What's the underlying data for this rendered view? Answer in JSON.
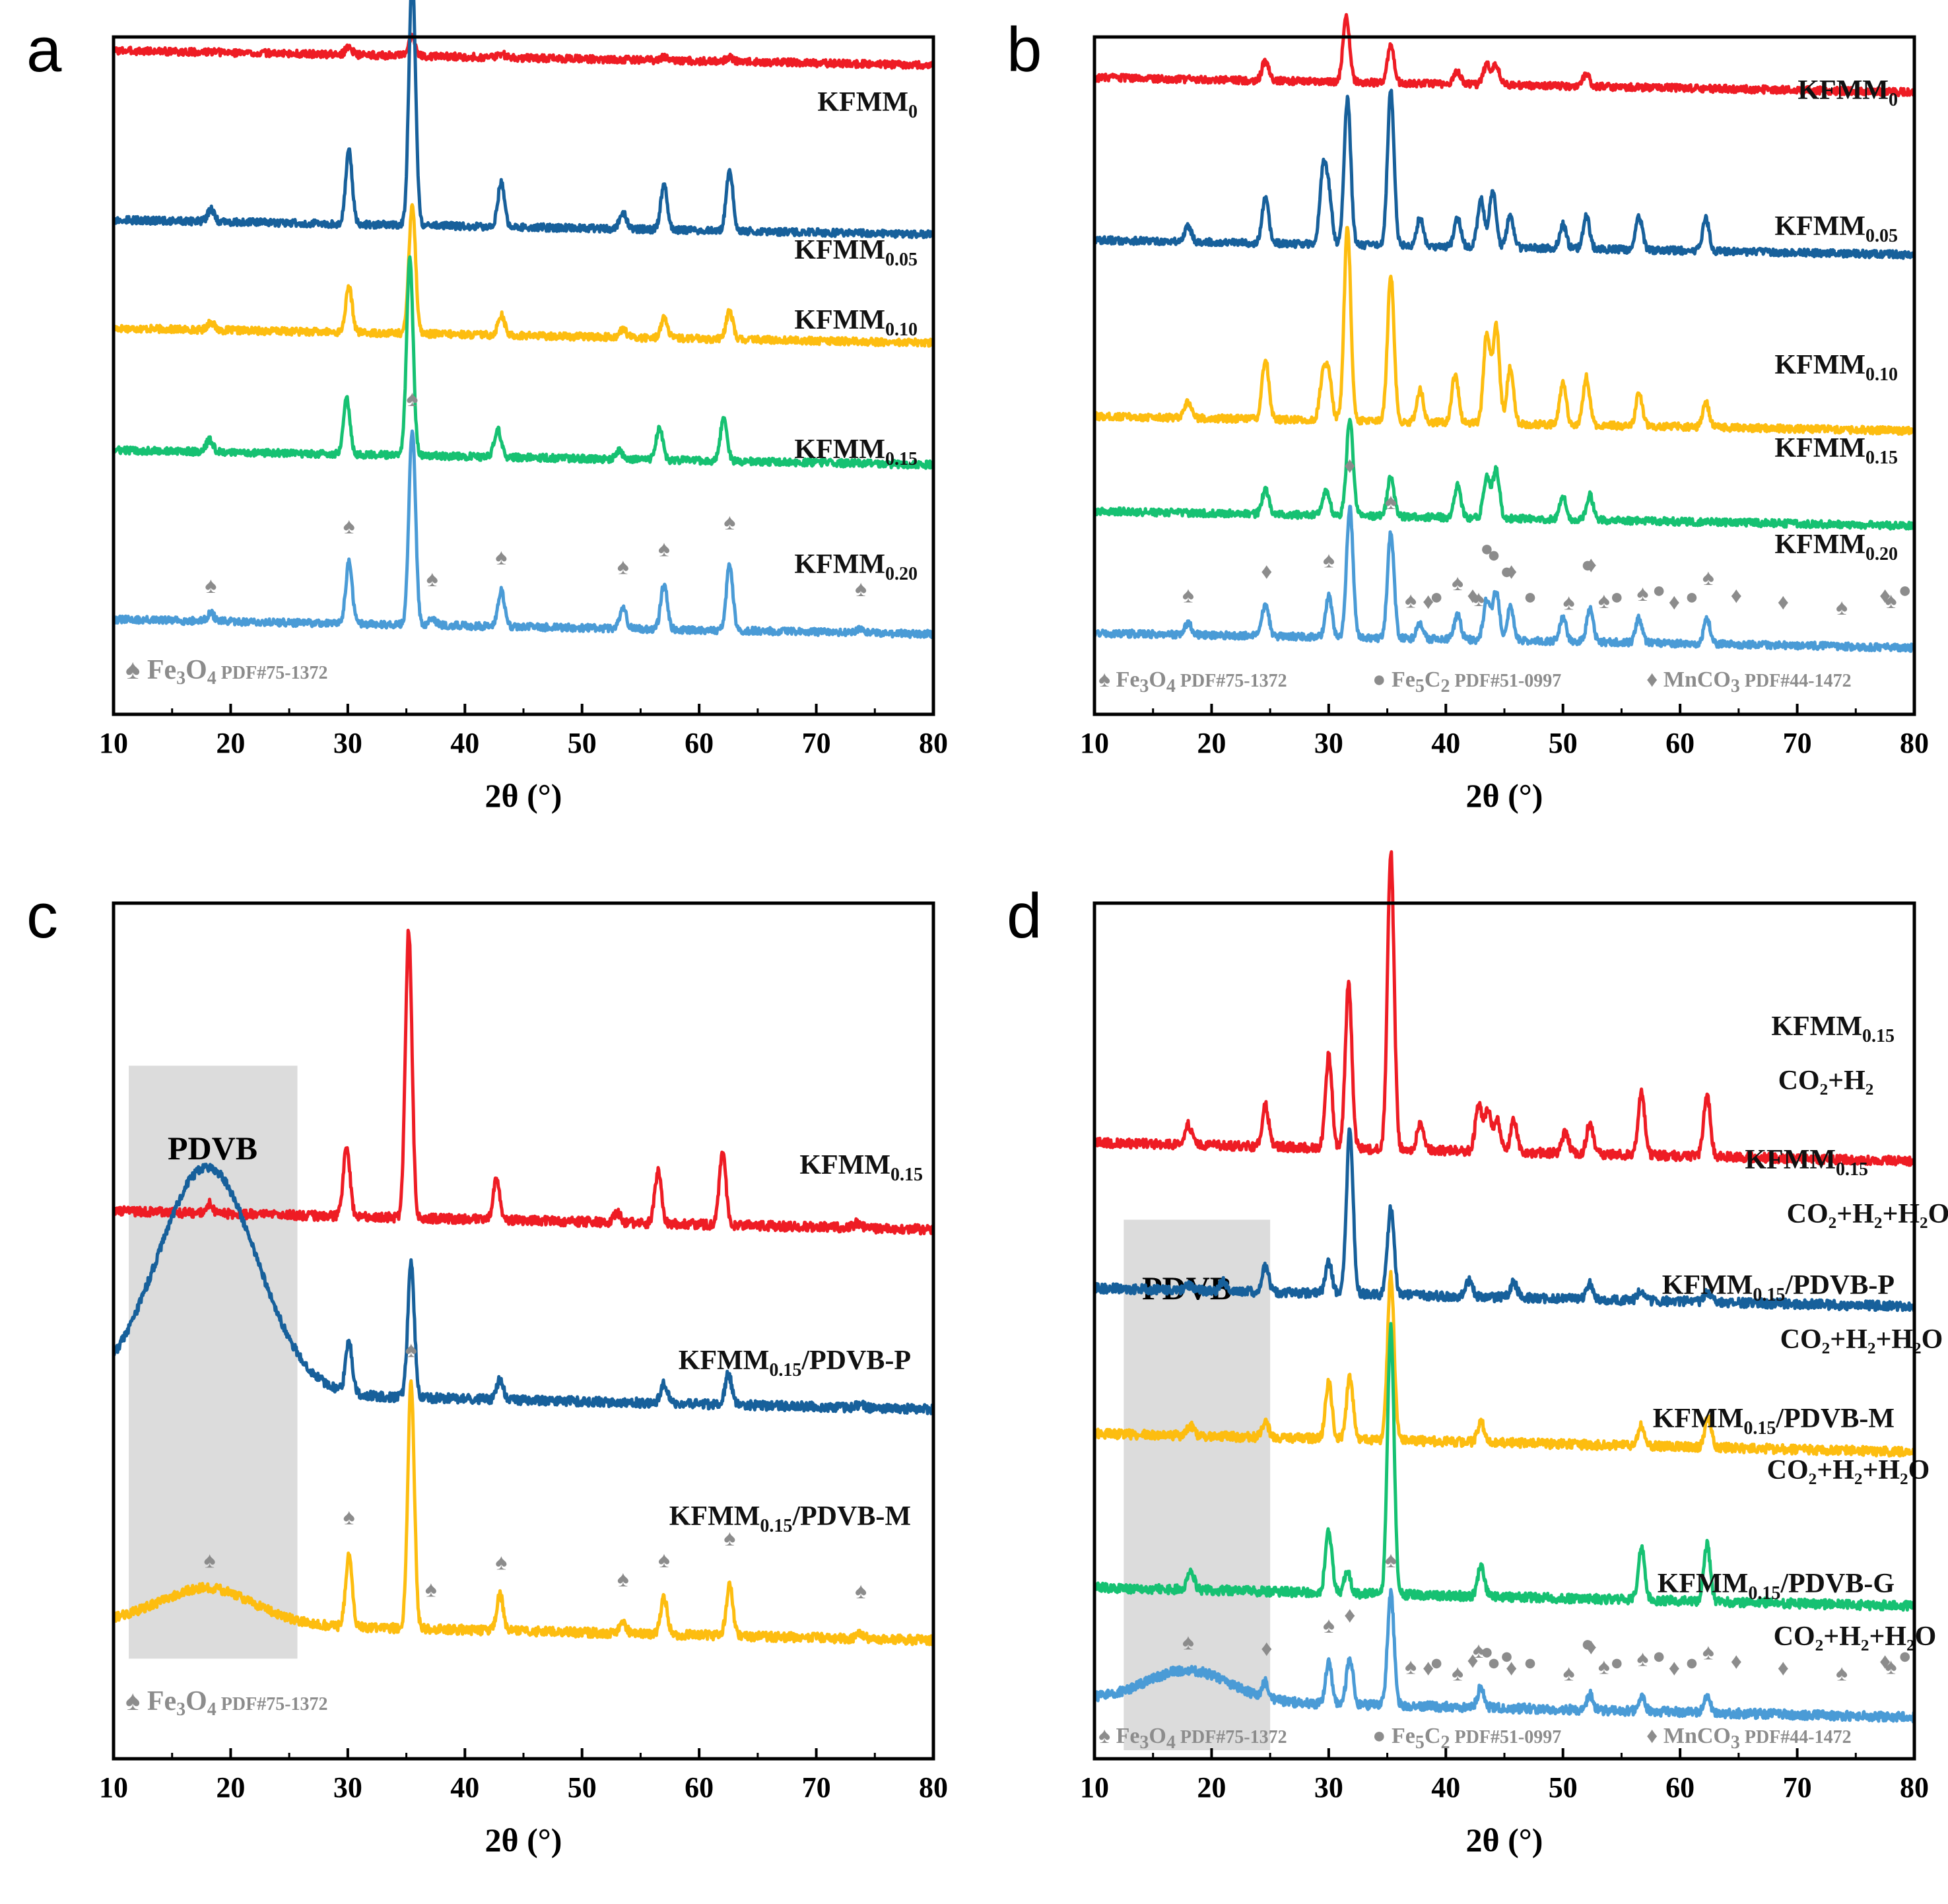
{
  "colors": {
    "red": "#ee1c24",
    "darkblue": "#17609b",
    "yellow": "#fdbd10",
    "green": "#16c172",
    "lightblue": "#4a9bd6",
    "marker": "#8c8c8c",
    "shade": "#dcdcdc"
  },
  "chart_data": [
    {
      "panel": "a",
      "type": "line",
      "xlabel": "2θ (°)",
      "xlim": [
        10,
        80
      ],
      "xticks": [
        10,
        20,
        30,
        40,
        50,
        60,
        70,
        80
      ],
      "grid": false,
      "series": [
        {
          "name": "KFMM",
          "sub": "0",
          "color": "red",
          "offset": 0.02,
          "peaks": [
            [
              30.1,
              0.1
            ],
            [
              35.5,
              0.25
            ],
            [
              43.1,
              0.05
            ],
            [
              57,
              0.05
            ],
            [
              62.6,
              0.05
            ]
          ]
        },
        {
          "name": "KFMM",
          "sub": "0.05",
          "color": "darkblue",
          "offset": 0.27,
          "peaks": [
            [
              18.3,
              0.15
            ],
            [
              30.1,
              0.9
            ],
            [
              35.5,
              3.1
            ],
            [
              43.1,
              0.55
            ],
            [
              53.5,
              0.2
            ],
            [
              57,
              0.55
            ],
            [
              62.6,
              0.75
            ]
          ]
        },
        {
          "name": "KFMM",
          "sub": "0.10",
          "color": "yellow",
          "offset": 0.43,
          "peaks": [
            [
              18.3,
              0.1
            ],
            [
              30.1,
              0.55
            ],
            [
              35.5,
              1.6
            ],
            [
              43.1,
              0.25
            ],
            [
              53.5,
              0.1
            ],
            [
              57,
              0.25
            ],
            [
              62.6,
              0.35
            ]
          ]
        },
        {
          "name": "KFMM",
          "sub": "0.15",
          "color": "green",
          "offset": 0.61,
          "peaks": [
            [
              18.2,
              0.15
            ],
            [
              29.9,
              0.7
            ],
            [
              35.3,
              2.4
            ],
            [
              42.8,
              0.35
            ],
            [
              53.2,
              0.1
            ],
            [
              56.6,
              0.4
            ],
            [
              62.1,
              0.55
            ]
          ]
        },
        {
          "name": "KFMM",
          "sub": "0.20",
          "color": "lightblue",
          "offset": 0.86,
          "peaks": [
            [
              18.3,
              0.1
            ],
            [
              30.1,
              0.75
            ],
            [
              35.5,
              2.4
            ],
            [
              37.2,
              0.1
            ],
            [
              43.1,
              0.45
            ],
            [
              53.5,
              0.25
            ],
            [
              57,
              0.55
            ],
            [
              62.6,
              0.8
            ],
            [
              73.8,
              0.06
            ]
          ]
        }
      ],
      "markers": [
        {
          "symbol": "spade",
          "positions": [
            18.3,
            30.1,
            35.5,
            37.2,
            43.1,
            53.5,
            57,
            62.6,
            73.8
          ]
        }
      ],
      "legend": [
        {
          "symbol": "♠",
          "phase": "Fe",
          "phase_sub1": "3",
          "phase_mid": "O",
          "phase_sub2": "4",
          "pdf": "PDF#75-1372"
        }
      ]
    },
    {
      "panel": "b",
      "type": "line",
      "xlabel": "2θ (°)",
      "xlim": [
        10,
        80
      ],
      "xticks": [
        10,
        20,
        30,
        40,
        50,
        60,
        70,
        80
      ],
      "grid": false,
      "series": [
        {
          "name": "KFMM",
          "sub": "0",
          "color": "red",
          "offset": 0.06,
          "peaks": [
            [
              24.6,
              0.25
            ],
            [
              31.5,
              0.8
            ],
            [
              35.3,
              0.45
            ],
            [
              41,
              0.15
            ],
            [
              43.5,
              0.25
            ],
            [
              44.3,
              0.25
            ],
            [
              52,
              0.15
            ]
          ]
        },
        {
          "name": "KFMM",
          "sub": "0.05",
          "color": "darkblue",
          "offset": 0.3,
          "peaks": [
            [
              18,
              0.2
            ],
            [
              24.6,
              0.55
            ],
            [
              29.5,
              0.85
            ],
            [
              30,
              0.6
            ],
            [
              31.6,
              1.8
            ],
            [
              35.3,
              1.9
            ],
            [
              37.8,
              0.35
            ],
            [
              41,
              0.35
            ],
            [
              43,
              0.6
            ],
            [
              44,
              0.7
            ],
            [
              45.5,
              0.4
            ],
            [
              50,
              0.3
            ],
            [
              52,
              0.4
            ],
            [
              56.5,
              0.4
            ],
            [
              62.2,
              0.4
            ]
          ]
        },
        {
          "name": "KFMM",
          "sub": "0.10",
          "color": "yellow",
          "offset": 0.56,
          "peaks": [
            [
              18,
              0.2
            ],
            [
              24.6,
              0.75
            ],
            [
              29.5,
              0.5
            ],
            [
              30,
              0.55
            ],
            [
              31.6,
              2.4
            ],
            [
              35.3,
              1.8
            ],
            [
              37.8,
              0.4
            ],
            [
              40.8,
              0.6
            ],
            [
              43.5,
              1.1
            ],
            [
              44.3,
              1.2
            ],
            [
              45.5,
              0.7
            ],
            [
              50,
              0.5
            ],
            [
              52,
              0.6
            ],
            [
              56.5,
              0.4
            ],
            [
              62.2,
              0.3
            ]
          ]
        },
        {
          "name": "KFMM",
          "sub": "0.15",
          "color": "green",
          "offset": 0.7,
          "peaks": [
            [
              24.6,
              0.3
            ],
            [
              29.8,
              0.3
            ],
            [
              31.8,
              1.2
            ],
            [
              35.3,
              0.5
            ],
            [
              41,
              0.4
            ],
            [
              43.5,
              0.5
            ],
            [
              44.3,
              0.6
            ],
            [
              50,
              0.3
            ],
            [
              52.3,
              0.3
            ]
          ]
        },
        {
          "name": "KFMM",
          "sub": "0.20",
          "color": "lightblue",
          "offset": 0.88,
          "peaks": [
            [
              18,
              0.15
            ],
            [
              24.6,
              0.4
            ],
            [
              30,
              0.5
            ],
            [
              31.8,
              1.6
            ],
            [
              35.3,
              1.3
            ],
            [
              37.8,
              0.2
            ],
            [
              41,
              0.3
            ],
            [
              43.5,
              0.5
            ],
            [
              44.3,
              0.6
            ],
            [
              45.5,
              0.4
            ],
            [
              50,
              0.3
            ],
            [
              52.3,
              0.4
            ],
            [
              56.5,
              0.3
            ],
            [
              62.3,
              0.3
            ]
          ]
        }
      ],
      "markers": [
        {
          "symbol": "spade",
          "positions": [
            18,
            30,
            35.3,
            37,
            41,
            42.8,
            50.5,
            53.5,
            56.8,
            62.4,
            73.8,
            78
          ]
        },
        {
          "symbol": "diamond",
          "positions": [
            24.7,
            31.8,
            38.5,
            42.3,
            45.6,
            52.4,
            59.5,
            64.8,
            68.8,
            77.5
          ]
        },
        {
          "symbol": "circle",
          "positions": [
            39.2,
            43.5,
            44.1,
            45.2,
            47.2,
            52.1,
            54.6,
            58.2,
            61,
            79.2
          ]
        }
      ],
      "legend": [
        {
          "symbol": "♠",
          "phase": "Fe",
          "phase_sub1": "3",
          "phase_mid": "O",
          "phase_sub2": "4",
          "pdf": "PDF#75-1372"
        },
        {
          "symbol": "●",
          "phase": "Fe",
          "phase_sub1": "5",
          "phase_mid": "C",
          "phase_sub2": "2",
          "pdf": "PDF#51-0997"
        },
        {
          "symbol": "♦",
          "phase": "MnCO",
          "phase_sub1": "",
          "phase_mid": "",
          "phase_sub2": "3",
          "pdf": "PDF#44-1472"
        }
      ]
    },
    {
      "panel": "c",
      "type": "line",
      "xlabel": "2θ (°)",
      "xlim": [
        10,
        80
      ],
      "xticks": [
        10,
        20,
        30,
        40,
        50,
        60,
        70,
        80
      ],
      "grid": false,
      "shaded_region": {
        "x0": 11.3,
        "x1": 25.7,
        "label": "PDVB"
      },
      "series": [
        {
          "name": "KFMM",
          "sub": "0.15",
          "suffix": "",
          "color": "red",
          "offset": 0.36,
          "peaks": [
            [
              18.2,
              0.1
            ],
            [
              29.9,
              0.7
            ],
            [
              35.2,
              2.8
            ],
            [
              42.7,
              0.4
            ],
            [
              53,
              0.1
            ],
            [
              56.5,
              0.5
            ],
            [
              62,
              0.7
            ],
            [
              73.5,
              0.05
            ]
          ]
        },
        {
          "name": "KFMM",
          "sub": "0.15",
          "suffix": "/PDVB-P",
          "color": "darkblue",
          "offset": 0.57,
          "hump": [
            18,
            2.2,
            4.2
          ],
          "peaks": [
            [
              30.1,
              0.5
            ],
            [
              35.4,
              1.3
            ],
            [
              43,
              0.2
            ],
            [
              57,
              0.2
            ],
            [
              62.5,
              0.3
            ],
            [
              73.8,
              0.04
            ]
          ]
        },
        {
          "name": "KFMM",
          "sub": "0.15",
          "suffix": "/PDVB-M",
          "color": "yellow",
          "offset": 0.84,
          "hump": [
            18,
            0.35,
            4
          ],
          "peaks": [
            [
              30.1,
              0.7
            ],
            [
              35.4,
              2.4
            ],
            [
              43,
              0.35
            ],
            [
              53.5,
              0.1
            ],
            [
              57,
              0.35
            ],
            [
              62.6,
              0.5
            ],
            [
              73.8,
              0.05
            ]
          ]
        }
      ],
      "markers": [
        {
          "symbol": "spade",
          "positions": [
            18.2,
            30.1,
            35.4,
            37.1,
            43.1,
            53.5,
            57,
            62.6,
            73.8
          ]
        }
      ],
      "legend": [
        {
          "symbol": "♠",
          "phase": "Fe",
          "phase_sub1": "3",
          "phase_mid": "O",
          "phase_sub2": "4",
          "pdf": "PDF#75-1372"
        }
      ]
    },
    {
      "panel": "d",
      "type": "line",
      "xlabel": "2θ (°)",
      "xlim": [
        10,
        80
      ],
      "xticks": [
        10,
        20,
        30,
        40,
        50,
        60,
        70,
        80
      ],
      "grid": false,
      "shaded_region": {
        "x0": 12.5,
        "x1": 25,
        "label": "PDVB"
      },
      "series": [
        {
          "name": "KFMM",
          "sub": "0.15",
          "suffix": "",
          "line2": "CO₂+H₂",
          "color": "red",
          "offset": 0.28,
          "peaks": [
            [
              18,
              0.2
            ],
            [
              24.6,
              0.4
            ],
            [
              30,
              0.9
            ],
            [
              31.7,
              1.6
            ],
            [
              35.3,
              2.9
            ],
            [
              37.8,
              0.25
            ],
            [
              42.8,
              0.45
            ],
            [
              43.6,
              0.4
            ],
            [
              44.4,
              0.3
            ],
            [
              45.8,
              0.3
            ],
            [
              50.2,
              0.2
            ],
            [
              52.3,
              0.3
            ],
            [
              56.7,
              0.6
            ],
            [
              62.3,
              0.6
            ]
          ]
        },
        {
          "name": "KFMM",
          "sub": "0.15",
          "suffix": "",
          "line2": "CO₂+H₂+H₂O",
          "color": "darkblue",
          "offset": 0.45,
          "peaks": [
            [
              18,
              0.05
            ],
            [
              21,
              0.1
            ],
            [
              24.6,
              0.25
            ],
            [
              30,
              0.3
            ],
            [
              31.8,
              1.6
            ],
            [
              35.3,
              0.85
            ],
            [
              42,
              0.15
            ],
            [
              45.8,
              0.15
            ],
            [
              52.3,
              0.15
            ],
            [
              56.7,
              0.1
            ],
            [
              62.3,
              0.1
            ]
          ]
        },
        {
          "name": "KFMM",
          "sub": "0.15",
          "suffix": "/PDVB-P",
          "line2": "CO₂+H₂+H₂O",
          "color": "yellow",
          "offset": 0.62,
          "peaks": [
            [
              18.2,
              0.1
            ],
            [
              24.6,
              0.15
            ],
            [
              30,
              0.55
            ],
            [
              31.8,
              0.6
            ],
            [
              35.3,
              1.6
            ],
            [
              43,
              0.2
            ],
            [
              56.7,
              0.2
            ],
            [
              62.4,
              0.3
            ]
          ]
        },
        {
          "name": "KFMM",
          "sub": "0.15",
          "suffix": "/PDVB-M",
          "line2": "CO₂+H₂+H₂O",
          "color": "green",
          "offset": 0.8,
          "peaks": [
            [
              18.2,
              0.2
            ],
            [
              30,
              0.6
            ],
            [
              31.6,
              0.2
            ],
            [
              35.3,
              2.6
            ],
            [
              43,
              0.3
            ],
            [
              56.7,
              0.5
            ],
            [
              62.3,
              0.55
            ]
          ]
        },
        {
          "name": "KFMM",
          "sub": "0.15",
          "suffix": "/PDVB-G",
          "line2": "CO₂+H₂+H₂O",
          "color": "lightblue",
          "offset": 0.93,
          "hump": [
            18,
            0.3,
            3.5
          ],
          "peaks": [
            [
              24.6,
              0.15
            ],
            [
              30,
              0.4
            ],
            [
              31.8,
              0.45
            ],
            [
              35.3,
              1.1
            ],
            [
              43,
              0.2
            ],
            [
              52.3,
              0.15
            ],
            [
              56.7,
              0.15
            ],
            [
              62.3,
              0.15
            ]
          ]
        }
      ],
      "markers": [
        {
          "symbol": "spade",
          "positions": [
            18,
            30,
            35.3,
            37,
            41,
            42.8,
            50.5,
            53.5,
            56.8,
            62.4,
            73.8,
            78
          ]
        },
        {
          "symbol": "diamond",
          "positions": [
            24.7,
            31.8,
            38.5,
            42.3,
            45.6,
            52.4,
            59.5,
            64.8,
            68.8,
            77.5
          ]
        },
        {
          "symbol": "circle",
          "positions": [
            39.2,
            43.5,
            44.1,
            45.2,
            47.2,
            52.1,
            54.6,
            58.2,
            61,
            79.2
          ]
        }
      ],
      "legend": [
        {
          "symbol": "♠",
          "phase": "Fe",
          "phase_sub1": "3",
          "phase_mid": "O",
          "phase_sub2": "4",
          "pdf": "PDF#75-1372"
        },
        {
          "symbol": "●",
          "phase": "Fe",
          "phase_sub1": "5",
          "phase_mid": "C",
          "phase_sub2": "2",
          "pdf": "PDF#51-0997"
        },
        {
          "symbol": "♦",
          "phase": "MnCO",
          "phase_sub1": "",
          "phase_mid": "",
          "phase_sub2": "3",
          "pdf": "PDF#44-1472"
        }
      ]
    }
  ]
}
